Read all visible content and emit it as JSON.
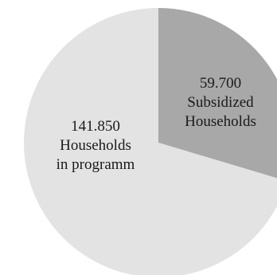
{
  "chart_data": {
    "type": "pie",
    "title": "",
    "slices": [
      {
        "name": "Subsidized Households",
        "value": 59700,
        "label_lines": [
          "59.700",
          "Subsidized",
          "Households"
        ],
        "color": "#a8a8a8"
      },
      {
        "name": "Households in programm",
        "value": 141850,
        "label_lines": [
          "141.850",
          "Households",
          "in programm"
        ],
        "color": "#e3e3e3"
      }
    ],
    "legend": "none"
  }
}
